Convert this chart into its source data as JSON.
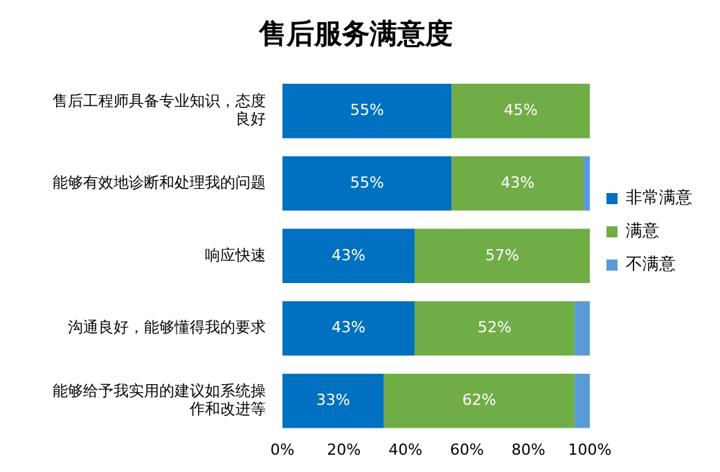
{
  "chart_data": {
    "type": "bar",
    "orientation": "horizontal",
    "stacked": true,
    "title": "售后服务满意度",
    "categories": [
      "售后工程师具备专业知识，态度良好",
      "能够有效地诊断和处理我的问题",
      "响应快速",
      "沟通良好，能够懂得我的要求",
      "能够给予我实用的建议如系统操作和改进等"
    ],
    "series": [
      {
        "name": "非常满意",
        "color": "#0070c0",
        "values": [
          55,
          55,
          43,
          43,
          33
        ],
        "value_labels": [
          "55%",
          "55%",
          "43%",
          "43%",
          "33%"
        ]
      },
      {
        "name": "满意",
        "color": "#70ad47",
        "values": [
          45,
          43,
          57,
          52,
          62
        ],
        "value_labels": [
          "45%",
          "43%",
          "57%",
          "52%",
          "62%"
        ]
      },
      {
        "name": "不满意",
        "color": "#5b9bd5",
        "values": [
          0,
          2,
          0,
          5,
          5
        ]
      }
    ],
    "xlim": [
      0,
      100
    ],
    "xticks": [
      {
        "value": 0,
        "label": "0%"
      },
      {
        "value": 20,
        "label": "20%"
      },
      {
        "value": 40,
        "label": "40%"
      },
      {
        "value": 60,
        "label": "60%"
      },
      {
        "value": 80,
        "label": "80%"
      },
      {
        "value": 100,
        "label": "100%"
      }
    ],
    "grid": false,
    "legend": "right"
  }
}
